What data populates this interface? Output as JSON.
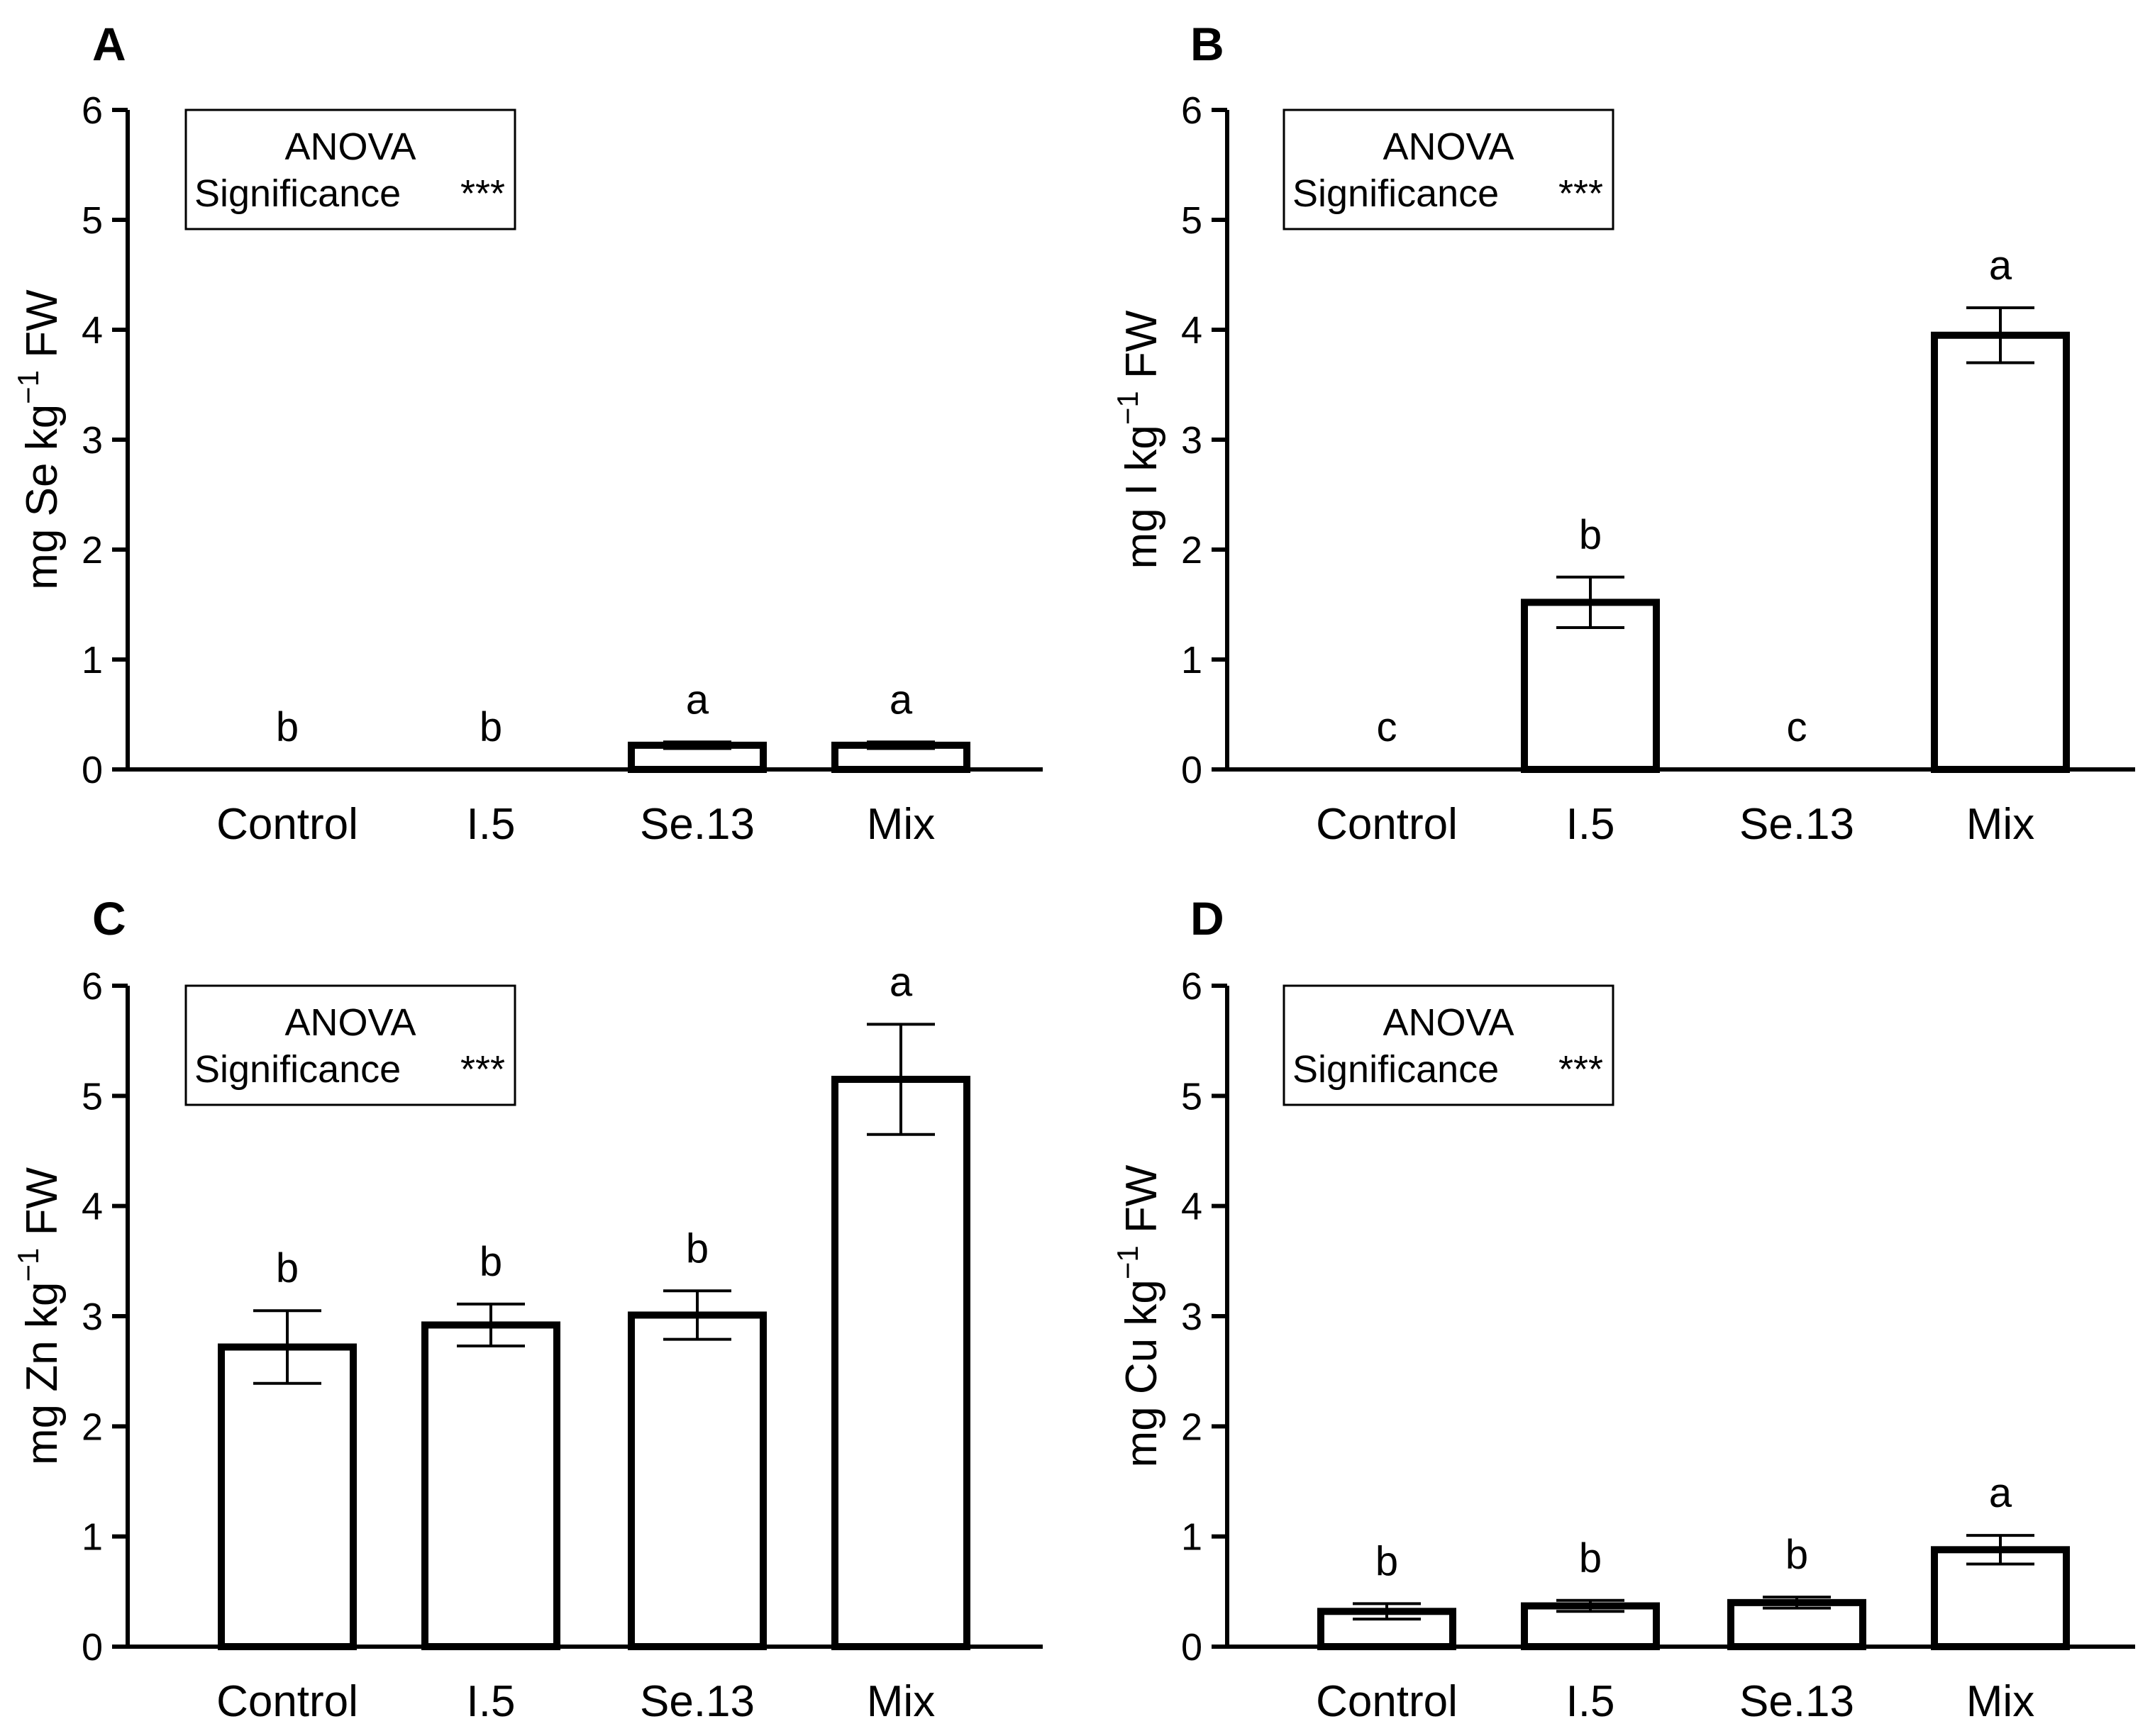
{
  "chart_data": [
    {
      "type": "bar",
      "panel": "A",
      "categories": [
        "Control",
        "I.5",
        "Se.13",
        "Mix"
      ],
      "values": [
        0,
        0,
        0.22,
        0.22
      ],
      "errors": [
        0,
        0,
        0.03,
        0.03
      ],
      "letters": [
        "b",
        "b",
        "a",
        "a"
      ],
      "ylabel": {
        "prefix": "mg Se kg",
        "sup": "−1",
        "suffix": " FW"
      },
      "ylim": [
        0,
        6
      ],
      "yticks": [
        "0",
        "1",
        "2",
        "3",
        "4",
        "5",
        "6"
      ],
      "anova": {
        "title": "ANOVA",
        "label": "Significance",
        "stars": "***"
      }
    },
    {
      "type": "bar",
      "panel": "B",
      "categories": [
        "Control",
        "I.5",
        "Se.13",
        "Mix"
      ],
      "values": [
        0,
        1.52,
        0,
        3.95
      ],
      "errors": [
        0,
        0.23,
        0,
        0.25
      ],
      "letters": [
        "c",
        "b",
        "c",
        "a"
      ],
      "ylabel": {
        "prefix": "mg I kg",
        "sup": "−1",
        "suffix": " FW"
      },
      "ylim": [
        0,
        6
      ],
      "yticks": [
        "0",
        "1",
        "2",
        "3",
        "4",
        "5",
        "6"
      ],
      "anova": {
        "title": "ANOVA",
        "label": "Significance",
        "stars": "***"
      }
    },
    {
      "type": "bar",
      "panel": "C",
      "categories": [
        "Control",
        "I.5",
        "Se.13",
        "Mix"
      ],
      "values": [
        2.72,
        2.92,
        3.01,
        5.15
      ],
      "errors": [
        0.33,
        0.19,
        0.22,
        0.5
      ],
      "letters": [
        "b",
        "b",
        "b",
        "a"
      ],
      "ylabel": {
        "prefix": "mg Zn kg",
        "sup": "−1",
        "suffix": " FW"
      },
      "ylim": [
        0,
        6
      ],
      "yticks": [
        "0",
        "1",
        "2",
        "3",
        "4",
        "5",
        "6"
      ],
      "anova": {
        "title": "ANOVA",
        "label": "Significance",
        "stars": "***"
      }
    },
    {
      "type": "bar",
      "panel": "D",
      "categories": [
        "Control",
        "I.5",
        "Se.13",
        "Mix"
      ],
      "values": [
        0.32,
        0.37,
        0.4,
        0.88
      ],
      "errors": [
        0.07,
        0.05,
        0.05,
        0.13
      ],
      "letters": [
        "b",
        "b",
        "b",
        "a"
      ],
      "ylabel": {
        "prefix": "mg Cu kg",
        "sup": "−1",
        "suffix": " FW"
      },
      "ylim": [
        0,
        6
      ],
      "yticks": [
        "0",
        "1",
        "2",
        "3",
        "4",
        "5",
        "6"
      ],
      "anova": {
        "title": "ANOVA",
        "label": "Significance",
        "stars": "***"
      }
    }
  ]
}
